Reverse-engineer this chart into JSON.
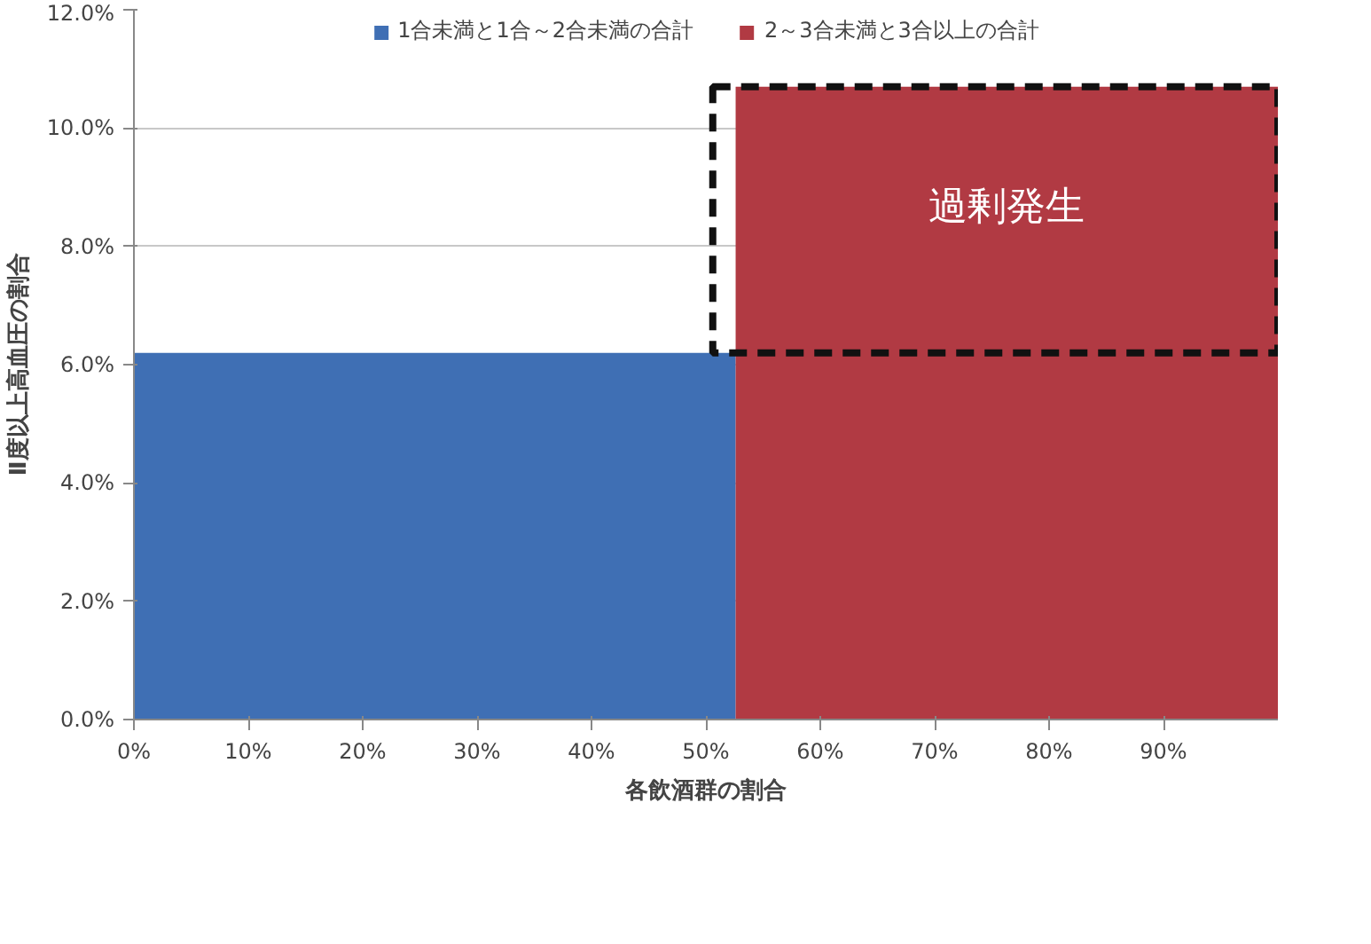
{
  "chart_data": {
    "type": "area",
    "xlabel": "各飲酒群の割合",
    "ylabel": "Ⅱ度以上高血圧の割合",
    "series": [
      {
        "name": "1合未満と1合～2合未満の合計",
        "color": "#3f6fb4",
        "x": [
          0,
          52.6
        ],
        "values": [
          6.2,
          6.2
        ]
      },
      {
        "name": "2～3合未満と3合以上の合計",
        "color": "#b13a43",
        "x": [
          52.6,
          100
        ],
        "values": [
          10.7,
          10.7
        ]
      }
    ],
    "xlim": [
      0,
      100
    ],
    "xticks": [
      {
        "value": 0,
        "label": "0%"
      },
      {
        "value": 10,
        "label": "10%"
      },
      {
        "value": 20,
        "label": "20%"
      },
      {
        "value": 30,
        "label": "30%"
      },
      {
        "value": 40,
        "label": "40%"
      },
      {
        "value": 50,
        "label": "50%"
      },
      {
        "value": 60,
        "label": "60%"
      },
      {
        "value": 70,
        "label": "70%"
      },
      {
        "value": 80,
        "label": "80%"
      },
      {
        "value": 90,
        "label": "90%"
      }
    ],
    "ylim": [
      0,
      12
    ],
    "yticks": [
      {
        "value": 0,
        "label": "0.0%"
      },
      {
        "value": 2,
        "label": "2.0%"
      },
      {
        "value": 4,
        "label": "4.0%"
      },
      {
        "value": 6,
        "label": "6.0%"
      },
      {
        "value": 8,
        "label": "8.0%"
      },
      {
        "value": 10,
        "label": "10.0%"
      },
      {
        "value": 12,
        "label": "12.0%"
      }
    ],
    "annotations": [
      "過剰発生"
    ],
    "grid": "y",
    "legend": "top"
  }
}
